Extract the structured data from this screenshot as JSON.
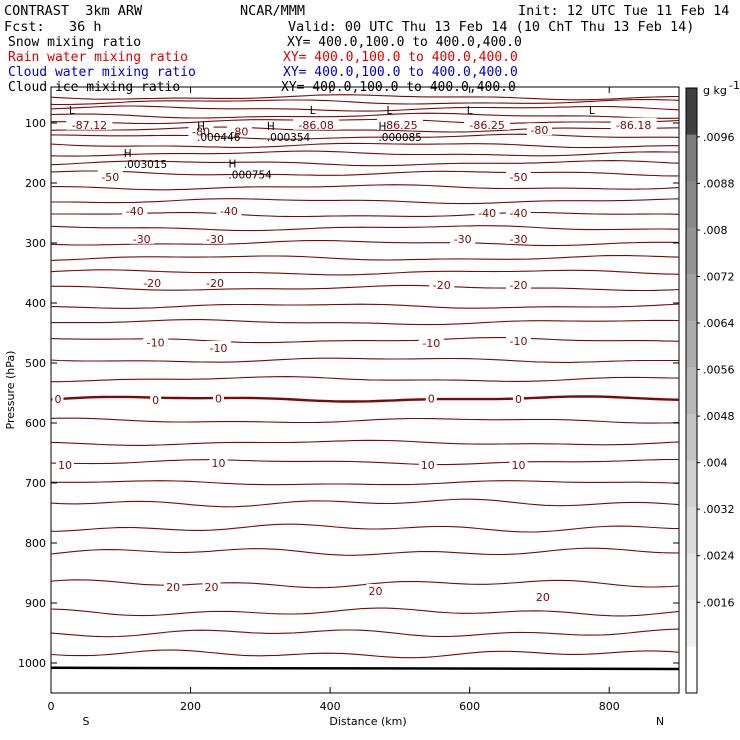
{
  "header": {
    "product": "CONTRAST  3km ARW",
    "org": "NCAR/MMM",
    "init": "Init: 12 UTC Tue 11 Feb 14",
    "fcst": "Fcst:   36 h",
    "valid": "Valid: 00 UTC Thu 13 Feb 14 (10 ChT Thu 13 Feb 14)"
  },
  "fields": [
    {
      "name": "Snow mixing ratio",
      "xy": "XY= 400.0,100.0 to 400.0,400.0",
      "color": "#000000"
    },
    {
      "name": "Rain water mixing ratio",
      "xy": "XY= 400.0,100.0 to 400.0,400.0",
      "color": "#e00000"
    },
    {
      "name": "Cloud water mixing ratio",
      "xy": "XY= 400.0,100.0 to 400.0,400.0",
      "color": "#0000cc"
    },
    {
      "name": "Cloud ice mixing ratio",
      "xy": "XY= 400.0,100.0 to 400.0,400.0",
      "color": "#000000"
    }
  ],
  "chart_data": {
    "type": "contour",
    "xlabel": "Distance (km)",
    "ylabel": "Pressure (hPa)",
    "xlim": [
      0,
      900
    ],
    "ylim": [
      1050,
      40
    ],
    "x_ticks": [
      "0",
      "200",
      "400",
      "600",
      "800"
    ],
    "y_ticks": [
      "100",
      "200",
      "300",
      "400",
      "500",
      "600",
      "700",
      "800",
      "900",
      "1000"
    ],
    "x_end_labels": {
      "left": "S",
      "right": "N"
    },
    "contour_color": "#7a0a0a",
    "contour_levels_p": [
      57,
      65,
      76,
      88,
      97,
      111,
      123,
      137,
      151,
      167,
      184,
      207,
      230,
      253,
      275,
      300,
      325,
      349,
      375,
      405,
      432,
      462,
      495,
      527,
      560,
      596,
      633,
      665,
      700,
      733,
      775,
      815,
      868,
      915,
      950,
      985
    ],
    "contour_labels": [
      {
        "text": "-87.12",
        "x": 55,
        "p": 103
      },
      {
        "text": "-80",
        "x": 215,
        "p": 114
      },
      {
        "text": "-80",
        "x": 270,
        "p": 114
      },
      {
        "text": "-86.08",
        "x": 380,
        "p": 103
      },
      {
        "text": "-86.25",
        "x": 500,
        "p": 103
      },
      {
        "text": "-86.25",
        "x": 625,
        "p": 103
      },
      {
        "text": "-80",
        "x": 700,
        "p": 112
      },
      {
        "text": "-86.18",
        "x": 835,
        "p": 103
      },
      {
        "text": "-50",
        "x": 85,
        "p": 190
      },
      {
        "text": "-50",
        "x": 670,
        "p": 190
      },
      {
        "text": "-40",
        "x": 120,
        "p": 247
      },
      {
        "text": "-40",
        "x": 255,
        "p": 247
      },
      {
        "text": "-40",
        "x": 625,
        "p": 250
      },
      {
        "text": "-40",
        "x": 670,
        "p": 250
      },
      {
        "text": "-30",
        "x": 130,
        "p": 293
      },
      {
        "text": "-30",
        "x": 235,
        "p": 293
      },
      {
        "text": "-30",
        "x": 590,
        "p": 293
      },
      {
        "text": "-30",
        "x": 670,
        "p": 293
      },
      {
        "text": "-20",
        "x": 145,
        "p": 367
      },
      {
        "text": "-20",
        "x": 235,
        "p": 367
      },
      {
        "text": "-20",
        "x": 560,
        "p": 370
      },
      {
        "text": "-20",
        "x": 670,
        "p": 370
      },
      {
        "text": "-10",
        "x": 150,
        "p": 466
      },
      {
        "text": "-10",
        "x": 240,
        "p": 475
      },
      {
        "text": "-10",
        "x": 545,
        "p": 467
      },
      {
        "text": "-10",
        "x": 670,
        "p": 463
      },
      {
        "text": "0",
        "x": 10,
        "p": 560
      },
      {
        "text": "0",
        "x": 150,
        "p": 562
      },
      {
        "text": "0",
        "x": 240,
        "p": 559
      },
      {
        "text": "0",
        "x": 545,
        "p": 559
      },
      {
        "text": "0",
        "x": 670,
        "p": 560
      },
      {
        "text": "10",
        "x": 20,
        "p": 670
      },
      {
        "text": "10",
        "x": 240,
        "p": 667
      },
      {
        "text": "10",
        "x": 540,
        "p": 670
      },
      {
        "text": "10",
        "x": 670,
        "p": 670
      },
      {
        "text": "20",
        "x": 175,
        "p": 873
      },
      {
        "text": "20",
        "x": 230,
        "p": 873
      },
      {
        "text": "20",
        "x": 465,
        "p": 880
      },
      {
        "text": "20",
        "x": 705,
        "p": 890
      }
    ],
    "extrema": [
      {
        "type": "L",
        "x": 30,
        "p": 85
      },
      {
        "type": "L",
        "x": 375,
        "p": 85
      },
      {
        "type": "L",
        "x": 485,
        "p": 85
      },
      {
        "type": "L",
        "x": 600,
        "p": 85
      },
      {
        "type": "L",
        "x": 775,
        "p": 85
      },
      {
        "type": "H",
        "value": ".000446",
        "x": 215,
        "p": 112
      },
      {
        "type": "H",
        "value": ".000354",
        "x": 315,
        "p": 112
      },
      {
        "type": "H",
        "value": ".000085",
        "x": 475,
        "p": 112
      },
      {
        "type": "H",
        "value": ".003015",
        "x": 110,
        "p": 157
      },
      {
        "type": "H",
        "value": ".000754",
        "x": 260,
        "p": 174
      }
    ],
    "colorbar": {
      "unit": "g kg",
      "unit_exp": "-1",
      "ticks": [
        ".0096",
        ".0088",
        ".008",
        ".0072",
        ".0064",
        ".0056",
        ".0048",
        ".004",
        ".0032",
        ".0024",
        ".0016"
      ],
      "colors": [
        "#ffffff",
        "#f0f0f0",
        "#e6e6e6",
        "#dbdbdb",
        "#d0d0d0",
        "#c4c4c4",
        "#b8b8b8",
        "#acacac",
        "#a0a0a0",
        "#949494",
        "#888888",
        "#7c7c7c",
        "#404040"
      ]
    }
  }
}
